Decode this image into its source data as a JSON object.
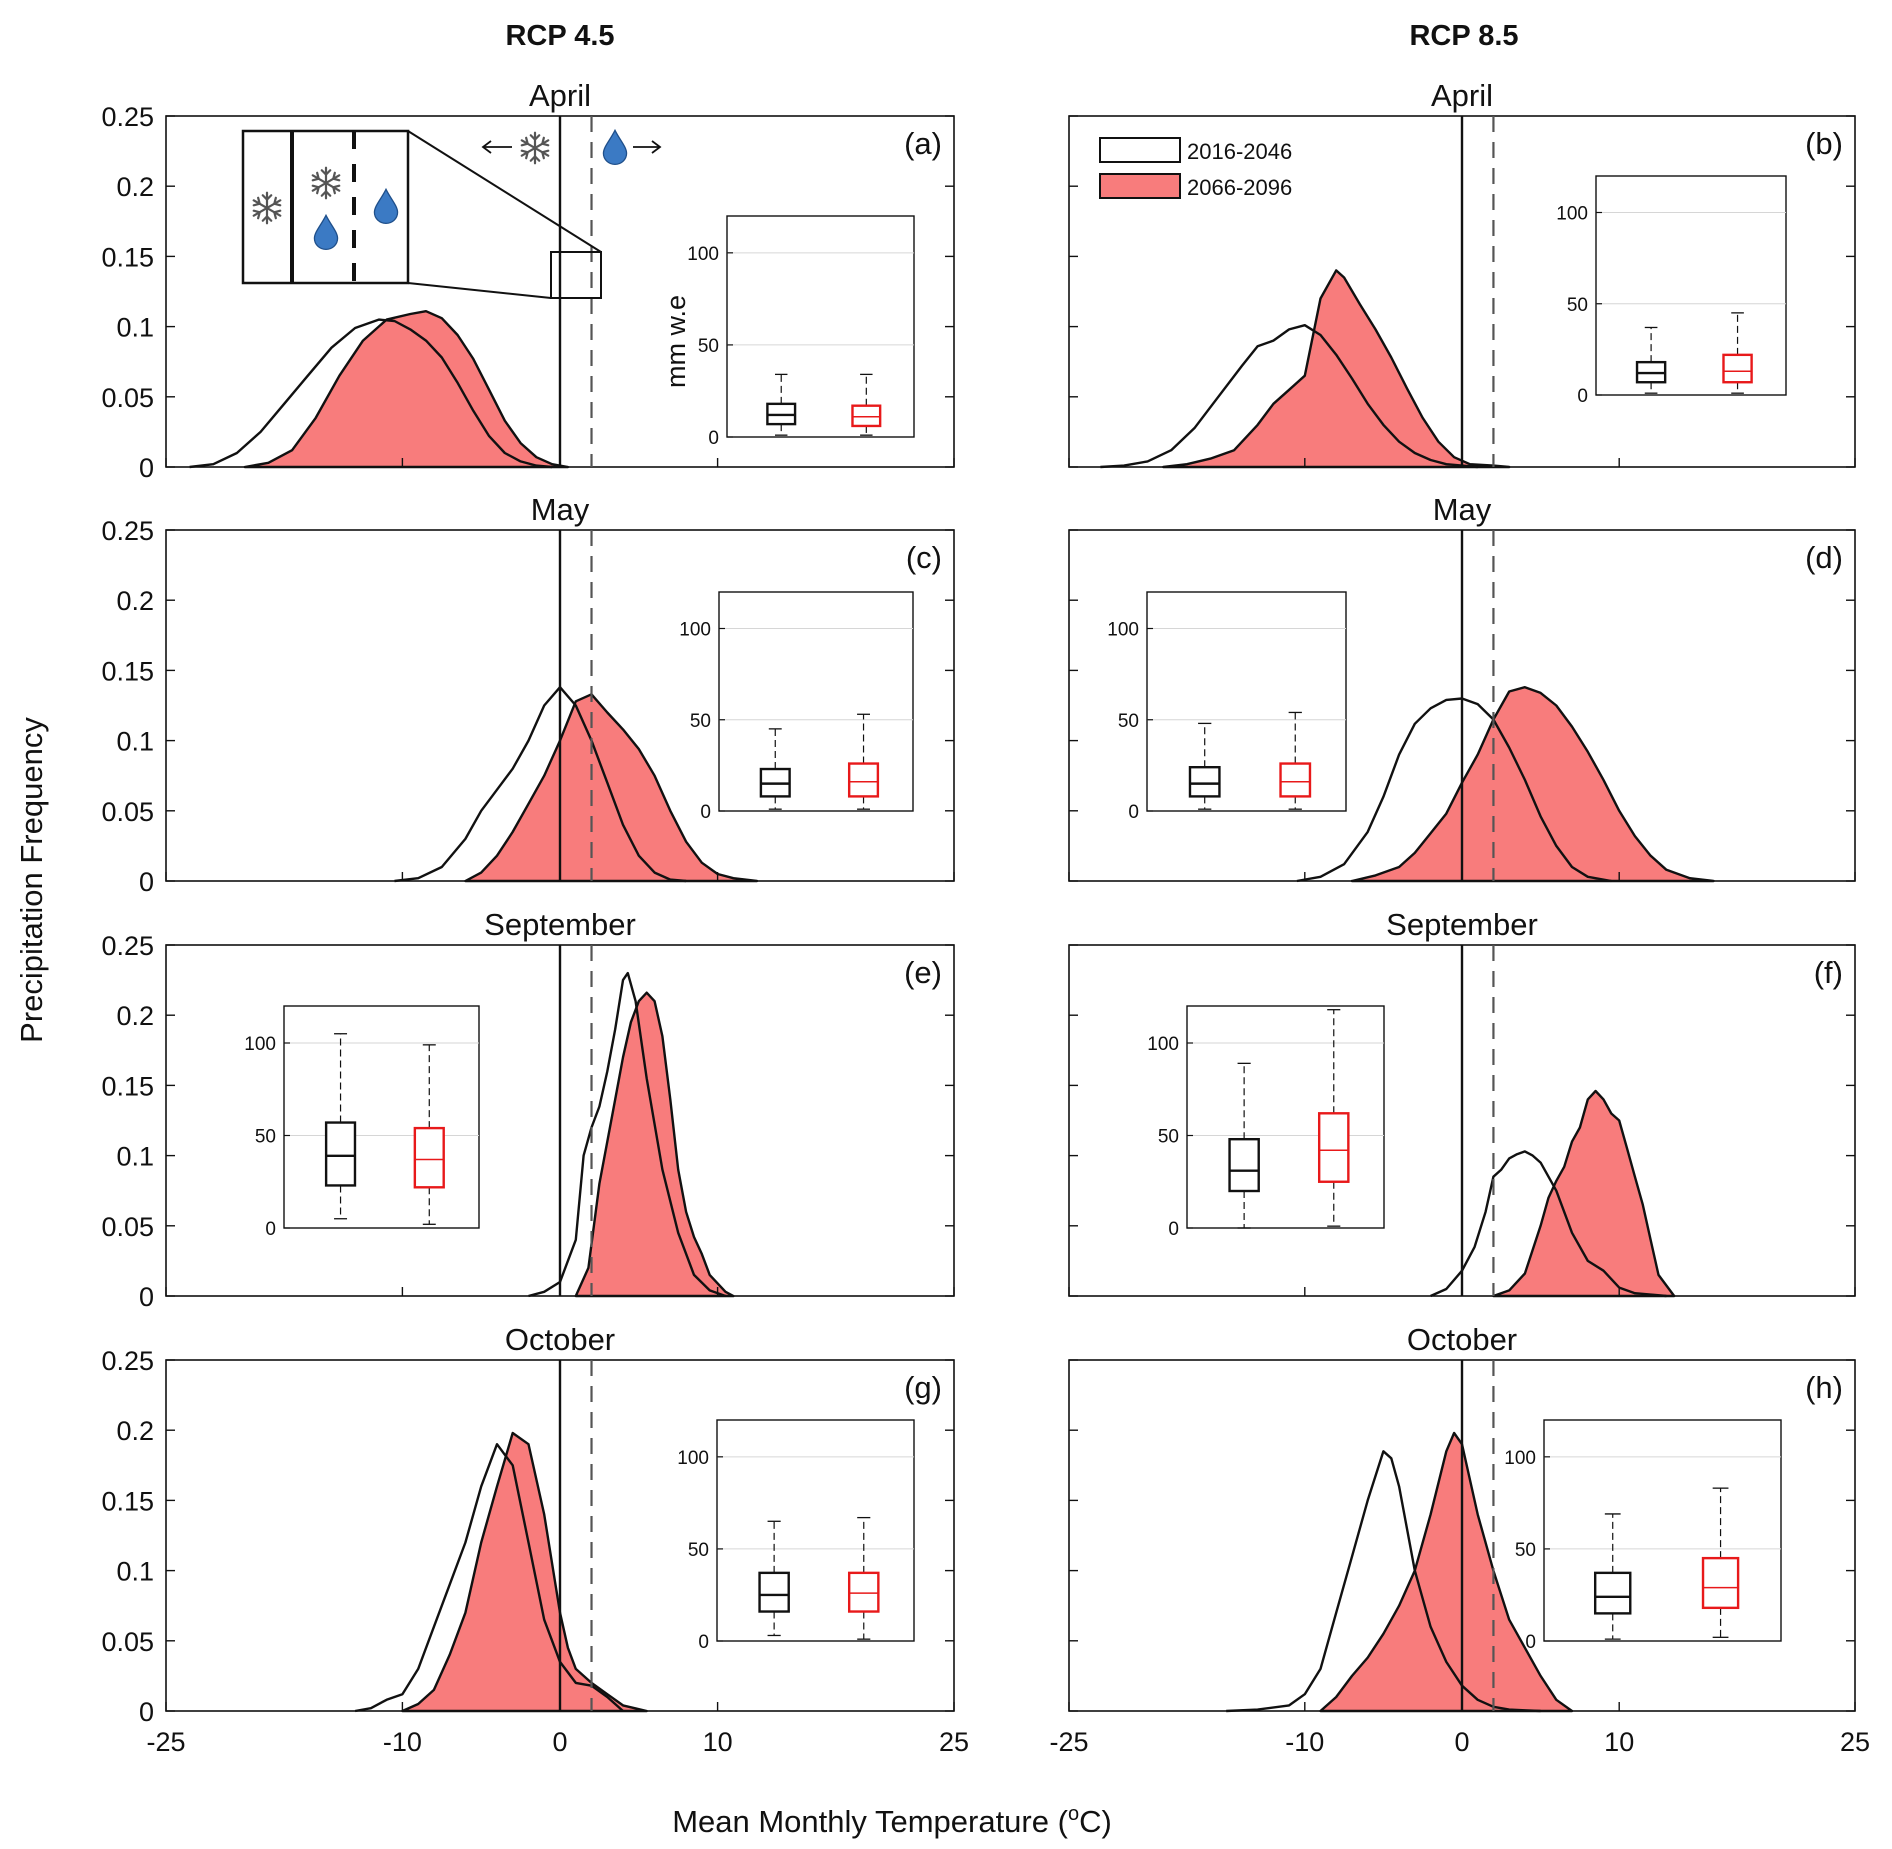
{
  "figure": {
    "col_titles": [
      "RCP 4.5",
      "RCP 8.5"
    ],
    "ylabel": "Precipitation Frequency",
    "xlabel": "Mean Monthly Temperature (",
    "xlabel_unit": "o",
    "xlabel_unit_suffix": "C)",
    "yticks": [
      0,
      0.05,
      0.1,
      0.15,
      0.2,
      0.25
    ],
    "ytick_labels": [
      "0",
      "0.05",
      "0.1",
      "0.15",
      "0.2",
      "0.25"
    ],
    "xticks": [
      -25,
      -10,
      0,
      10,
      25
    ],
    "xtick_labels": [
      "-25",
      "-10",
      "0",
      "10",
      "25"
    ],
    "legend": [
      {
        "label": "2016-2046",
        "fill": "#ffffff"
      },
      {
        "label": "2066-2096",
        "fill": "#f87c7c"
      }
    ],
    "inset_ylabel": "mm w.e",
    "inset_yticks": [
      "0",
      "50",
      "100"
    ],
    "threshold_solid": 0,
    "threshold_dashed": 2,
    "colors": {
      "future_fill": "#f87c7c",
      "hist_line": "#111111",
      "future_box": "#e8191a",
      "droplet": "#3b7ac4"
    }
  },
  "chart_data": [
    {
      "type": "area",
      "panel": "(a)",
      "title": "April",
      "scenario": "RCP 4.5",
      "xlim": [
        -25,
        25
      ],
      "ylim": [
        0,
        0.25
      ],
      "series": [
        {
          "name": "2016-2046",
          "x": [
            -23.5,
            -22,
            -20.5,
            -19,
            -17.5,
            -16,
            -14.5,
            -13,
            -11.5,
            -10.5,
            -9.5,
            -8.5,
            -7.5,
            -6.5,
            -5.5,
            -4.5,
            -3.5,
            -2.5,
            -1.5,
            -0.5
          ],
          "y": [
            0,
            0.002,
            0.01,
            0.025,
            0.045,
            0.065,
            0.085,
            0.099,
            0.105,
            0.104,
            0.098,
            0.09,
            0.078,
            0.06,
            0.04,
            0.022,
            0.01,
            0.004,
            0.001,
            0
          ]
        },
        {
          "name": "2066-2096",
          "x": [
            -20,
            -18.5,
            -17,
            -15.5,
            -14,
            -12.5,
            -11,
            -9.5,
            -8.5,
            -7.5,
            -6.5,
            -5.5,
            -4.5,
            -3.5,
            -2.5,
            -1.5,
            -0.5,
            0.5
          ],
          "y": [
            0,
            0.003,
            0.012,
            0.035,
            0.065,
            0.09,
            0.105,
            0.109,
            0.111,
            0.106,
            0.094,
            0.077,
            0.055,
            0.033,
            0.017,
            0.007,
            0.002,
            0
          ]
        }
      ],
      "box": {
        "hist": {
          "min": 1,
          "q1": 7,
          "median": 12,
          "q3": 18,
          "max": 34
        },
        "future": {
          "min": 1,
          "q1": 6,
          "median": 11,
          "q3": 17,
          "max": 34
        }
      }
    },
    {
      "type": "area",
      "panel": "(b)",
      "title": "April",
      "scenario": "RCP 8.5",
      "xlim": [
        -25,
        25
      ],
      "ylim": [
        0,
        0.25
      ],
      "series": [
        {
          "name": "2016-2046",
          "x": [
            -23,
            -21.5,
            -20,
            -18.5,
            -17,
            -15.5,
            -14,
            -13,
            -12,
            -11,
            -10,
            -9,
            -8,
            -7,
            -6,
            -5,
            -4,
            -3,
            -2,
            -1,
            0,
            1
          ],
          "y": [
            0,
            0.001,
            0.004,
            0.012,
            0.028,
            0.05,
            0.072,
            0.086,
            0.09,
            0.098,
            0.101,
            0.094,
            0.08,
            0.063,
            0.045,
            0.03,
            0.018,
            0.01,
            0.005,
            0.002,
            0.001,
            0
          ]
        },
        {
          "name": "2066-2096",
          "x": [
            -19,
            -17.5,
            -16,
            -14.5,
            -13,
            -12,
            -11,
            -10,
            -9,
            -8,
            -7.5,
            -6.5,
            -5.5,
            -4.5,
            -3.5,
            -2.5,
            -1.5,
            -0.5,
            0.5,
            2,
            3
          ],
          "y": [
            0,
            0.002,
            0.006,
            0.012,
            0.03,
            0.045,
            0.055,
            0.065,
            0.12,
            0.14,
            0.135,
            0.116,
            0.098,
            0.078,
            0.056,
            0.035,
            0.018,
            0.007,
            0.002,
            0.001,
            0
          ]
        }
      ],
      "box": {
        "hist": {
          "min": 1,
          "q1": 7,
          "median": 12,
          "q3": 18,
          "max": 37
        },
        "future": {
          "min": 1,
          "q1": 7,
          "median": 13,
          "q3": 22,
          "max": 45
        }
      }
    },
    {
      "type": "area",
      "panel": "(c)",
      "title": "May",
      "scenario": "RCP 4.5",
      "xlim": [
        -25,
        25
      ],
      "ylim": [
        0,
        0.25
      ],
      "series": [
        {
          "name": "2016-2046",
          "x": [
            -10.5,
            -9,
            -7.5,
            -6,
            -5,
            -4,
            -3,
            -2,
            -1,
            0,
            1,
            2,
            3,
            4,
            5,
            6,
            7,
            8
          ],
          "y": [
            0,
            0.002,
            0.01,
            0.03,
            0.05,
            0.065,
            0.08,
            0.1,
            0.125,
            0.138,
            0.125,
            0.1,
            0.07,
            0.04,
            0.018,
            0.006,
            0.001,
            0
          ]
        },
        {
          "name": "2066-2096",
          "x": [
            -6,
            -5,
            -4,
            -3,
            -2,
            -1,
            0,
            1,
            2,
            3,
            4,
            5,
            6,
            7,
            8,
            9,
            10,
            11,
            12.5
          ],
          "y": [
            0,
            0.006,
            0.018,
            0.035,
            0.055,
            0.075,
            0.1,
            0.128,
            0.133,
            0.12,
            0.108,
            0.094,
            0.075,
            0.05,
            0.028,
            0.013,
            0.005,
            0.002,
            0
          ]
        }
      ],
      "box": {
        "hist": {
          "min": 1,
          "q1": 8,
          "median": 15,
          "q3": 23,
          "max": 45
        },
        "future": {
          "min": 1,
          "q1": 8,
          "median": 16,
          "q3": 26,
          "max": 53
        }
      }
    },
    {
      "type": "area",
      "panel": "(d)",
      "title": "May",
      "scenario": "RCP 8.5",
      "xlim": [
        -25,
        25
      ],
      "ylim": [
        0,
        0.25
      ],
      "series": [
        {
          "name": "2016-2046",
          "x": [
            -10.5,
            -9,
            -7.5,
            -6,
            -5,
            -4,
            -3,
            -2,
            -1,
            0,
            1,
            2,
            3,
            4,
            5,
            6,
            7,
            8,
            9.5
          ],
          "y": [
            0,
            0.003,
            0.012,
            0.035,
            0.06,
            0.09,
            0.112,
            0.123,
            0.129,
            0.13,
            0.126,
            0.115,
            0.095,
            0.072,
            0.046,
            0.025,
            0.01,
            0.003,
            0
          ]
        },
        {
          "name": "2066-2096",
          "x": [
            -7,
            -5.5,
            -4,
            -3,
            -2,
            -1,
            0,
            1,
            2,
            3,
            4,
            5,
            6,
            7,
            8,
            9,
            10,
            11,
            12,
            13,
            14.5,
            16
          ],
          "y": [
            0,
            0.004,
            0.01,
            0.02,
            0.034,
            0.048,
            0.07,
            0.09,
            0.115,
            0.135,
            0.138,
            0.134,
            0.125,
            0.11,
            0.092,
            0.072,
            0.05,
            0.032,
            0.018,
            0.008,
            0.002,
            0
          ]
        }
      ],
      "box": {
        "hist": {
          "min": 1,
          "q1": 8,
          "median": 15,
          "q3": 24,
          "max": 48
        },
        "future": {
          "min": 1,
          "q1": 8,
          "median": 16,
          "q3": 26,
          "max": 54
        }
      }
    },
    {
      "type": "area",
      "panel": "(e)",
      "title": "September",
      "scenario": "RCP 4.5",
      "xlim": [
        -25,
        25
      ],
      "ylim": [
        0,
        0.25
      ],
      "series": [
        {
          "name": "2016-2046",
          "x": [
            -2,
            -1,
            0,
            1,
            1.5,
            2,
            2.5,
            3,
            3.5,
            4,
            4.3,
            4.8,
            5.5,
            6.5,
            7.5,
            8.5,
            9.5,
            10.5
          ],
          "y": [
            0,
            0.003,
            0.01,
            0.04,
            0.1,
            0.12,
            0.135,
            0.16,
            0.19,
            0.225,
            0.23,
            0.21,
            0.155,
            0.09,
            0.045,
            0.015,
            0.004,
            0
          ]
        },
        {
          "name": "2066-2096",
          "x": [
            1,
            1.8,
            2.5,
            3,
            3.5,
            4,
            4.5,
            5,
            5.5,
            6,
            6.5,
            7,
            7.5,
            8,
            8.5,
            9,
            9.5,
            10.5,
            11
          ],
          "y": [
            0,
            0.02,
            0.08,
            0.11,
            0.14,
            0.17,
            0.195,
            0.21,
            0.216,
            0.21,
            0.185,
            0.14,
            0.09,
            0.06,
            0.042,
            0.03,
            0.015,
            0.003,
            0
          ]
        }
      ],
      "box": {
        "hist": {
          "min": 5,
          "q1": 23,
          "median": 39,
          "q3": 57,
          "max": 105
        },
        "future": {
          "min": 2,
          "q1": 22,
          "median": 37,
          "q3": 54,
          "max": 99
        }
      }
    },
    {
      "type": "area",
      "panel": "(f)",
      "title": "September",
      "scenario": "RCP 8.5",
      "xlim": [
        -25,
        25
      ],
      "ylim": [
        0,
        0.25
      ],
      "series": [
        {
          "name": "2016-2046",
          "x": [
            -2,
            -1,
            0,
            0.8,
            1.5,
            2,
            2.5,
            3,
            3.5,
            4,
            4.5,
            5,
            5.5,
            6,
            7,
            8,
            9,
            10,
            11,
            12,
            13
          ],
          "y": [
            0,
            0.005,
            0.018,
            0.035,
            0.06,
            0.085,
            0.09,
            0.098,
            0.101,
            0.103,
            0.1,
            0.095,
            0.085,
            0.075,
            0.045,
            0.025,
            0.018,
            0.006,
            0.002,
            0.001,
            0
          ]
        },
        {
          "name": "2066-2096",
          "x": [
            2,
            3,
            4,
            5,
            5.5,
            6,
            6.5,
            7,
            7.5,
            8,
            8.5,
            9,
            9.5,
            10,
            10.5,
            11,
            11.5,
            12,
            12.5,
            13.5
          ],
          "y": [
            0,
            0.004,
            0.016,
            0.05,
            0.07,
            0.082,
            0.092,
            0.11,
            0.12,
            0.14,
            0.146,
            0.14,
            0.13,
            0.125,
            0.105,
            0.085,
            0.065,
            0.04,
            0.015,
            0
          ]
        }
      ],
      "box": {
        "hist": {
          "min": 0,
          "q1": 20,
          "median": 31,
          "q3": 48,
          "max": 89
        },
        "future": {
          "min": 1,
          "q1": 25,
          "median": 42,
          "q3": 62,
          "max": 118
        }
      }
    },
    {
      "type": "area",
      "panel": "(g)",
      "title": "October",
      "scenario": "RCP 4.5",
      "xlim": [
        -25,
        25
      ],
      "ylim": [
        0,
        0.25
      ],
      "series": [
        {
          "name": "2016-2046",
          "x": [
            -13,
            -12,
            -11,
            -10,
            -9,
            -8,
            -7,
            -6,
            -5,
            -4,
            -3,
            -2,
            -1,
            0,
            1,
            2,
            3,
            4
          ],
          "y": [
            0,
            0.002,
            0.008,
            0.012,
            0.03,
            0.06,
            0.09,
            0.12,
            0.16,
            0.19,
            0.175,
            0.12,
            0.065,
            0.035,
            0.02,
            0.018,
            0.01,
            0
          ]
        },
        {
          "name": "2066-2096",
          "x": [
            -10,
            -9,
            -8,
            -7,
            -6,
            -5,
            -4,
            -3,
            -2,
            -1,
            0,
            0.5,
            1,
            2,
            3,
            4,
            5.5
          ],
          "y": [
            0,
            0.005,
            0.015,
            0.04,
            0.07,
            0.12,
            0.16,
            0.198,
            0.19,
            0.14,
            0.07,
            0.045,
            0.03,
            0.02,
            0.012,
            0.004,
            0
          ]
        }
      ],
      "box": {
        "hist": {
          "min": 3,
          "q1": 16,
          "median": 25,
          "q3": 37,
          "max": 65
        },
        "future": {
          "min": 1,
          "q1": 16,
          "median": 26,
          "q3": 37,
          "max": 67
        }
      }
    },
    {
      "type": "area",
      "panel": "(h)",
      "title": "October",
      "scenario": "RCP 8.5",
      "xlim": [
        -25,
        25
      ],
      "ylim": [
        0,
        0.25
      ],
      "series": [
        {
          "name": "2016-2046",
          "x": [
            -15,
            -13,
            -11,
            -10,
            -9,
            -8,
            -7,
            -6,
            -5,
            -4.5,
            -4,
            -3,
            -2,
            -1,
            0,
            1,
            2,
            3,
            4,
            5
          ],
          "y": [
            0,
            0.001,
            0.004,
            0.012,
            0.03,
            0.07,
            0.11,
            0.15,
            0.185,
            0.18,
            0.16,
            0.1,
            0.06,
            0.035,
            0.018,
            0.008,
            0.003,
            0.001,
            0.0005,
            0
          ]
        },
        {
          "name": "2066-2096",
          "x": [
            -9,
            -8,
            -7,
            -6,
            -5,
            -4,
            -3,
            -2,
            -1,
            -0.5,
            0,
            1,
            2,
            3,
            4,
            5,
            6,
            7
          ],
          "y": [
            0,
            0.01,
            0.025,
            0.038,
            0.055,
            0.075,
            0.1,
            0.14,
            0.185,
            0.198,
            0.19,
            0.14,
            0.1,
            0.065,
            0.045,
            0.025,
            0.008,
            0
          ]
        }
      ],
      "box": {
        "hist": {
          "min": 1,
          "q1": 15,
          "median": 24,
          "q3": 37,
          "max": 69
        },
        "future": {
          "min": 2,
          "q1": 18,
          "median": 29,
          "q3": 45,
          "max": 83
        }
      }
    }
  ]
}
